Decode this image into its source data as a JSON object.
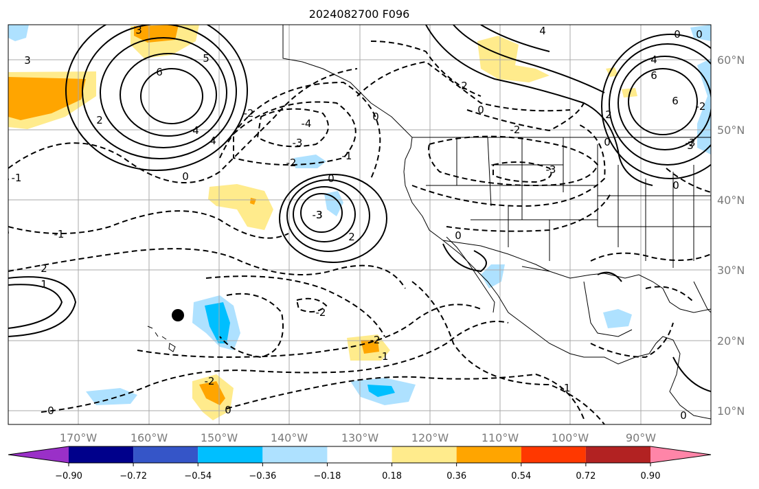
{
  "title": "2024082700 F096",
  "map": {
    "lon_labels": [
      "170°W",
      "160°W",
      "150°W",
      "140°W",
      "130°W",
      "120°W",
      "110°W",
      "100°W",
      "90°W"
    ],
    "lat_labels": [
      "60°N",
      "50°N",
      "40°N",
      "30°N",
      "20°N",
      "10°N"
    ],
    "lon_range": [
      -180,
      -80
    ],
    "lat_range": [
      8,
      66
    ],
    "marker": {
      "lon": -155.5,
      "lat": 23.5
    }
  },
  "contour_labels": [
    "3",
    "6",
    "4",
    "2",
    "0",
    "4",
    "3",
    "5",
    "0",
    "3",
    "2",
    "0",
    "2",
    "4",
    "6",
    "3",
    "0",
    "2",
    "6",
    "4",
    "0",
    "2",
    "1",
    "-3",
    "-4",
    "-3",
    "-2",
    "-1",
    "-2",
    "0",
    "-2",
    "-2",
    "-3",
    "0",
    "-1",
    "-2",
    "-1",
    "0",
    "-1",
    "-2",
    "-1",
    "0",
    "0",
    "0",
    "0",
    "-2",
    "-3"
  ],
  "colorbar": {
    "colors": [
      "#9a30c8",
      "#00008b",
      "#3555c8",
      "#00bfff",
      "#aee1ff",
      "#ffffff",
      "#ffeb8c",
      "#ffa500",
      "#ff3800",
      "#b22222",
      "#ff85a8"
    ],
    "tick_labels": [
      "−0.90",
      "−0.72",
      "−0.54",
      "−0.36",
      "−0.18",
      "0.18",
      "0.36",
      "0.54",
      "0.72",
      "0.90"
    ]
  },
  "colors": {
    "grid": "#a8a8a8",
    "contour": "#000000",
    "orange": "#ffa500",
    "yellow": "#ffeb8c",
    "light_blue": "#aee1ff",
    "blue": "#00bfff"
  }
}
